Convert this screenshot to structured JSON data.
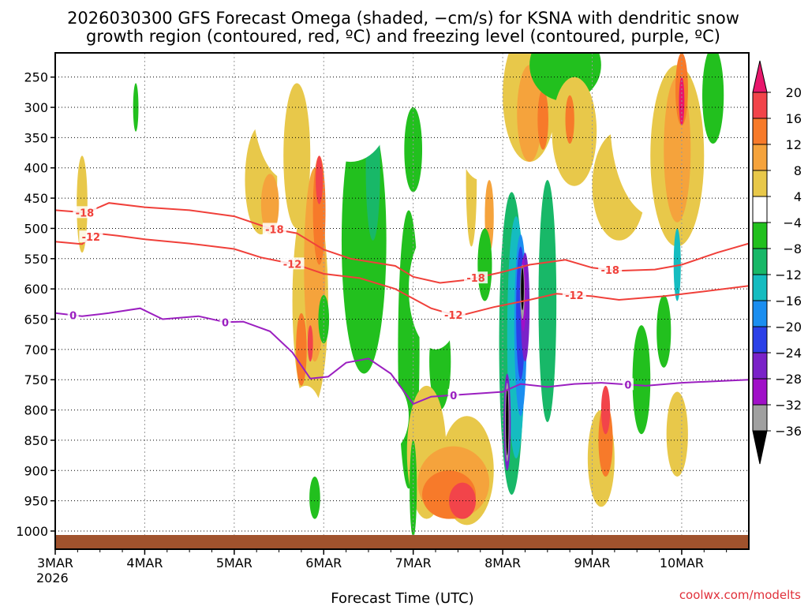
{
  "chart_data": {
    "type": "heatmap",
    "title_line1": "2026030300 GFS Forecast Omega (shaded, −cm/s) for KSNA with dendritic snow",
    "title_line2": "growth region (contoured, red, ºC) and freezing level (contoured, purple, ºC)",
    "xlabel": "Forecast Time (UTC)",
    "ylabel": "",
    "credit": "coolwx.com/modelts",
    "x_range_days": [
      0,
      7.75
    ],
    "y_range_hpa": [
      210,
      1030
    ],
    "x_ticks": [
      {
        "day": 0,
        "label": "3MAR",
        "sublabel": "2026"
      },
      {
        "day": 1,
        "label": "4MAR"
      },
      {
        "day": 2,
        "label": "5MAR"
      },
      {
        "day": 3,
        "label": "6MAR"
      },
      {
        "day": 4,
        "label": "7MAR"
      },
      {
        "day": 5,
        "label": "8MAR"
      },
      {
        "day": 6,
        "label": "9MAR"
      },
      {
        "day": 7,
        "label": "10MAR"
      }
    ],
    "y_ticks": [
      250,
      300,
      350,
      400,
      450,
      500,
      550,
      600,
      650,
      700,
      750,
      800,
      850,
      900,
      950,
      1000
    ],
    "colorbar": {
      "labels": [
        "20",
        "16",
        "12",
        "8",
        "4",
        "−4",
        "−8",
        "−12",
        "−16",
        "−20",
        "−24",
        "−28",
        "−32",
        "−36"
      ],
      "bins": [
        {
          "lo": 20,
          "hi": 99,
          "color": "#e8176c"
        },
        {
          "lo": 16,
          "hi": 20,
          "color": "#f2444a"
        },
        {
          "lo": 12,
          "hi": 16,
          "color": "#f77a2a"
        },
        {
          "lo": 8,
          "hi": 12,
          "color": "#f5a33c"
        },
        {
          "lo": 4,
          "hi": 8,
          "color": "#e8c84a"
        },
        {
          "lo": 0,
          "hi": 4,
          "color": "#f2e860"
        },
        {
          "lo": -4,
          "hi": 4,
          "color": "#ffffff"
        },
        {
          "lo": -8,
          "hi": -4,
          "color": "#22c01e"
        },
        {
          "lo": -12,
          "hi": -8,
          "color": "#18b868"
        },
        {
          "lo": -16,
          "hi": -12,
          "color": "#15bcc0"
        },
        {
          "lo": -20,
          "hi": -16,
          "color": "#1b8ef0"
        },
        {
          "lo": -24,
          "hi": -20,
          "color": "#2b40e8"
        },
        {
          "lo": -28,
          "hi": -24,
          "color": "#7a22c8"
        },
        {
          "lo": -32,
          "hi": -28,
          "color": "#a010c8"
        },
        {
          "lo": -36,
          "hi": -32,
          "color": "#a0a0a0"
        },
        {
          "lo": -99,
          "hi": -36,
          "color": "#000000"
        }
      ]
    },
    "series": [
      {
        "name": "-18",
        "kind": "dendritic growth contour",
        "color": "#f0403a",
        "label_positions": [
          0.33,
          2.45,
          4.7,
          6.2
        ],
        "points": [
          [
            0,
            470
          ],
          [
            0.35,
            474
          ],
          [
            0.6,
            458
          ],
          [
            1.0,
            465
          ],
          [
            1.5,
            470
          ],
          [
            2.0,
            480
          ],
          [
            2.4,
            500
          ],
          [
            2.7,
            508
          ],
          [
            3.0,
            535
          ],
          [
            3.3,
            550
          ],
          [
            3.8,
            562
          ],
          [
            4.0,
            580
          ],
          [
            4.3,
            590
          ],
          [
            4.6,
            585
          ],
          [
            5.0,
            572
          ],
          [
            5.3,
            560
          ],
          [
            5.7,
            552
          ],
          [
            6.0,
            565
          ],
          [
            6.3,
            570
          ],
          [
            6.7,
            568
          ],
          [
            7.0,
            560
          ],
          [
            7.4,
            540
          ],
          [
            7.75,
            525
          ]
        ]
      },
      {
        "name": "-12",
        "kind": "dendritic growth contour",
        "color": "#f0403a",
        "label_positions": [
          0.4,
          2.65,
          4.45,
          5.8
        ],
        "points": [
          [
            0,
            522
          ],
          [
            0.3,
            526
          ],
          [
            0.45,
            508
          ],
          [
            0.7,
            512
          ],
          [
            1.0,
            518
          ],
          [
            1.5,
            525
          ],
          [
            2.0,
            534
          ],
          [
            2.3,
            548
          ],
          [
            2.7,
            560
          ],
          [
            3.0,
            575
          ],
          [
            3.4,
            582
          ],
          [
            3.8,
            600
          ],
          [
            4.2,
            632
          ],
          [
            4.5,
            645
          ],
          [
            4.9,
            630
          ],
          [
            5.3,
            618
          ],
          [
            5.6,
            608
          ],
          [
            6.0,
            612
          ],
          [
            6.3,
            618
          ],
          [
            6.8,
            612
          ],
          [
            7.2,
            605
          ],
          [
            7.75,
            595
          ]
        ]
      },
      {
        "name": "0",
        "kind": "freezing level contour",
        "color": "#9b1fc0",
        "label_positions": [
          0.2,
          1.9,
          4.45,
          6.4
        ],
        "points": [
          [
            0,
            640
          ],
          [
            0.3,
            645
          ],
          [
            0.6,
            640
          ],
          [
            0.95,
            632
          ],
          [
            1.2,
            650
          ],
          [
            1.6,
            645
          ],
          [
            1.9,
            655
          ],
          [
            2.1,
            654
          ],
          [
            2.4,
            670
          ],
          [
            2.65,
            705
          ],
          [
            2.85,
            748
          ],
          [
            3.05,
            745
          ],
          [
            3.25,
            722
          ],
          [
            3.5,
            715
          ],
          [
            3.75,
            740
          ],
          [
            4.0,
            790
          ],
          [
            4.2,
            778
          ],
          [
            4.5,
            775
          ],
          [
            4.8,
            772
          ],
          [
            5.0,
            770
          ],
          [
            5.2,
            757
          ],
          [
            5.5,
            762
          ],
          [
            5.8,
            757
          ],
          [
            6.1,
            755
          ],
          [
            6.6,
            760
          ],
          [
            7.0,
            755
          ],
          [
            7.75,
            750
          ]
        ]
      }
    ],
    "shaded_regions": [
      {
        "id": "r01",
        "v": 6,
        "c": [
          0.3,
          460
        ],
        "r": [
          0.06,
          80
        ]
      },
      {
        "id": "r02",
        "v": 2,
        "c": [
          0.08,
          480
        ],
        "r": [
          0.08,
          60
        ]
      },
      {
        "id": "r03",
        "v": -6,
        "c": [
          0.9,
          300
        ],
        "r": [
          0.03,
          40
        ]
      },
      {
        "id": "r04",
        "v": 2,
        "c": [
          1.6,
          430
        ],
        "r": [
          0.18,
          45
        ]
      },
      {
        "id": "r05",
        "v": 5,
        "c": [
          2.3,
          420
        ],
        "r": [
          0.18,
          90
        ]
      },
      {
        "id": "r06",
        "v": 9,
        "c": [
          2.4,
          460
        ],
        "r": [
          0.1,
          50
        ]
      },
      {
        "id": "r07",
        "v": 2,
        "c": [
          2.6,
          280
        ],
        "r": [
          0.4,
          140
        ]
      },
      {
        "id": "r08",
        "v": 6,
        "c": [
          2.7,
          380
        ],
        "r": [
          0.15,
          120
        ]
      },
      {
        "id": "r09",
        "v": 6,
        "c": [
          2.85,
          620
        ],
        "r": [
          0.2,
          180
        ]
      },
      {
        "id": "r10",
        "v": 10,
        "c": [
          2.9,
          560
        ],
        "r": [
          0.12,
          160
        ]
      },
      {
        "id": "r11",
        "v": 14,
        "c": [
          2.95,
          470
        ],
        "r": [
          0.07,
          90
        ]
      },
      {
        "id": "r12",
        "v": 14,
        "c": [
          2.75,
          700
        ],
        "r": [
          0.06,
          60
        ]
      },
      {
        "id": "r13",
        "v": 18,
        "c": [
          2.95,
          420
        ],
        "r": [
          0.04,
          40
        ]
      },
      {
        "id": "r14",
        "v": 18,
        "c": [
          2.85,
          690
        ],
        "r": [
          0.03,
          30
        ]
      },
      {
        "id": "r15",
        "v": 2,
        "c": [
          2.8,
          830
        ],
        "r": [
          0.2,
          70
        ]
      },
      {
        "id": "r16",
        "v": -6,
        "c": [
          3.45,
          520
        ],
        "r": [
          0.25,
          220
        ]
      },
      {
        "id": "r17",
        "v": -10,
        "c": [
          3.55,
          400
        ],
        "r": [
          0.08,
          120
        ]
      },
      {
        "id": "r18",
        "v": -6,
        "c": [
          3.95,
          700
        ],
        "r": [
          0.12,
          230
        ]
      },
      {
        "id": "r19",
        "v": 2,
        "c": [
          3.3,
          300
        ],
        "r": [
          0.45,
          90
        ]
      },
      {
        "id": "r20",
        "v": 2,
        "c": [
          3.7,
          810
        ],
        "r": [
          0.25,
          60
        ]
      },
      {
        "id": "r21",
        "v": -6,
        "c": [
          4.3,
          720
        ],
        "r": [
          0.12,
          80
        ]
      },
      {
        "id": "r22",
        "v": -6,
        "c": [
          4.0,
          370
        ],
        "r": [
          0.1,
          70
        ]
      },
      {
        "id": "r23",
        "v": 2,
        "c": [
          4.25,
          600
        ],
        "r": [
          0.3,
          100
        ]
      },
      {
        "id": "r24",
        "v": 6,
        "c": [
          4.15,
          870
        ],
        "r": [
          0.22,
          110
        ]
      },
      {
        "id": "r25",
        "v": 6,
        "c": [
          4.6,
          900
        ],
        "r": [
          0.3,
          90
        ]
      },
      {
        "id": "r26",
        "v": 10,
        "c": [
          4.45,
          920
        ],
        "r": [
          0.4,
          60
        ]
      },
      {
        "id": "r27",
        "v": 14,
        "c": [
          4.4,
          940
        ],
        "r": [
          0.3,
          40
        ]
      },
      {
        "id": "r28",
        "v": 18,
        "c": [
          4.55,
          950
        ],
        "r": [
          0.15,
          30
        ]
      },
      {
        "id": "r29",
        "v": -6,
        "c": [
          4.0,
          930
        ],
        "r": [
          0.04,
          80
        ]
      },
      {
        "id": "r30",
        "v": 6,
        "c": [
          4.65,
          420
        ],
        "r": [
          0.06,
          110
        ]
      },
      {
        "id": "r31",
        "v": 10,
        "c": [
          4.85,
          480
        ],
        "r": [
          0.05,
          60
        ]
      },
      {
        "id": "r32",
        "v": -6,
        "c": [
          4.8,
          560
        ],
        "r": [
          0.08,
          60
        ]
      },
      {
        "id": "r33",
        "v": 2,
        "c": [
          4.75,
          300
        ],
        "r": [
          0.3,
          120
        ]
      },
      {
        "id": "r34",
        "v": -10,
        "c": [
          5.1,
          690
        ],
        "r": [
          0.14,
          250
        ]
      },
      {
        "id": "r35",
        "v": -14,
        "c": [
          5.15,
          680
        ],
        "r": [
          0.1,
          200
        ]
      },
      {
        "id": "r36",
        "v": -18,
        "c": [
          5.2,
          660
        ],
        "r": [
          0.07,
          150
        ]
      },
      {
        "id": "r37",
        "v": -22,
        "c": [
          5.2,
          640
        ],
        "r": [
          0.05,
          110
        ]
      },
      {
        "id": "r38",
        "v": -26,
        "c": [
          5.25,
          630
        ],
        "r": [
          0.05,
          90
        ]
      },
      {
        "id": "r39",
        "v": -30,
        "c": [
          5.23,
          610
        ],
        "r": [
          0.03,
          60
        ]
      },
      {
        "id": "r40",
        "v": -34,
        "c": [
          5.22,
          605
        ],
        "r": [
          0.025,
          45
        ]
      },
      {
        "id": "r41",
        "v": -40,
        "c": [
          5.22,
          600
        ],
        "r": [
          0.016,
          35
        ]
      },
      {
        "id": "r42",
        "v": -26,
        "c": [
          5.05,
          820
        ],
        "r": [
          0.04,
          80
        ]
      },
      {
        "id": "r43",
        "v": -34,
        "c": [
          5.05,
          820
        ],
        "r": [
          0.025,
          65
        ]
      },
      {
        "id": "r44",
        "v": -40,
        "c": [
          5.05,
          820
        ],
        "r": [
          0.015,
          55
        ]
      },
      {
        "id": "r45",
        "v": -10,
        "c": [
          5.5,
          620
        ],
        "r": [
          0.1,
          200
        ]
      },
      {
        "id": "r46",
        "v": 6,
        "c": [
          5.3,
          280
        ],
        "r": [
          0.3,
          110
        ]
      },
      {
        "id": "r47",
        "v": 10,
        "c": [
          5.3,
          310
        ],
        "r": [
          0.14,
          80
        ]
      },
      {
        "id": "r48",
        "v": 14,
        "c": [
          5.45,
          320
        ],
        "r": [
          0.06,
          50
        ]
      },
      {
        "id": "r49",
        "v": -6,
        "c": [
          5.7,
          230
        ],
        "r": [
          0.4,
          60
        ]
      },
      {
        "id": "r50",
        "v": 6,
        "c": [
          5.8,
          340
        ],
        "r": [
          0.25,
          90
        ]
      },
      {
        "id": "r51",
        "v": 14,
        "c": [
          5.75,
          320
        ],
        "r": [
          0.05,
          40
        ]
      },
      {
        "id": "r52",
        "v": 6,
        "c": [
          6.1,
          880
        ],
        "r": [
          0.15,
          80
        ]
      },
      {
        "id": "r53",
        "v": 14,
        "c": [
          6.15,
          850
        ],
        "r": [
          0.08,
          60
        ]
      },
      {
        "id": "r54",
        "v": 18,
        "c": [
          6.15,
          800
        ],
        "r": [
          0.05,
          40
        ]
      },
      {
        "id": "r55",
        "v": -6,
        "c": [
          6.55,
          750
        ],
        "r": [
          0.1,
          90
        ]
      },
      {
        "id": "r56",
        "v": 6,
        "c": [
          6.3,
          430
        ],
        "r": [
          0.3,
          90
        ]
      },
      {
        "id": "r57",
        "v": 2,
        "c": [
          6.7,
          320
        ],
        "r": [
          0.5,
          160
        ]
      },
      {
        "id": "r58",
        "v": 6,
        "c": [
          6.95,
          380
        ],
        "r": [
          0.3,
          150
        ]
      },
      {
        "id": "r59",
        "v": 10,
        "c": [
          6.95,
          370
        ],
        "r": [
          0.15,
          120
        ]
      },
      {
        "id": "r60",
        "v": 14,
        "c": [
          7.0,
          270
        ],
        "r": [
          0.07,
          60
        ]
      },
      {
        "id": "r61",
        "v": 22,
        "c": [
          7.0,
          290
        ],
        "r": [
          0.03,
          40
        ]
      },
      {
        "id": "r62",
        "v": -14,
        "c": [
          6.95,
          560
        ],
        "r": [
          0.04,
          60
        ]
      },
      {
        "id": "r63",
        "v": -6,
        "c": [
          7.35,
          280
        ],
        "r": [
          0.12,
          80
        ]
      },
      {
        "id": "r64",
        "v": 6,
        "c": [
          6.95,
          840
        ],
        "r": [
          0.12,
          70
        ]
      },
      {
        "id": "r65",
        "v": -6,
        "c": [
          6.8,
          670
        ],
        "r": [
          0.08,
          60
        ]
      },
      {
        "id": "r66",
        "v": -6,
        "c": [
          3.0,
          650
        ],
        "r": [
          0.06,
          40
        ]
      },
      {
        "id": "r67",
        "v": 2,
        "c": [
          1.0,
          900
        ],
        "r": [
          0.05,
          35
        ]
      },
      {
        "id": "r68",
        "v": -6,
        "c": [
          2.9,
          945
        ],
        "r": [
          0.06,
          35
        ]
      }
    ]
  }
}
